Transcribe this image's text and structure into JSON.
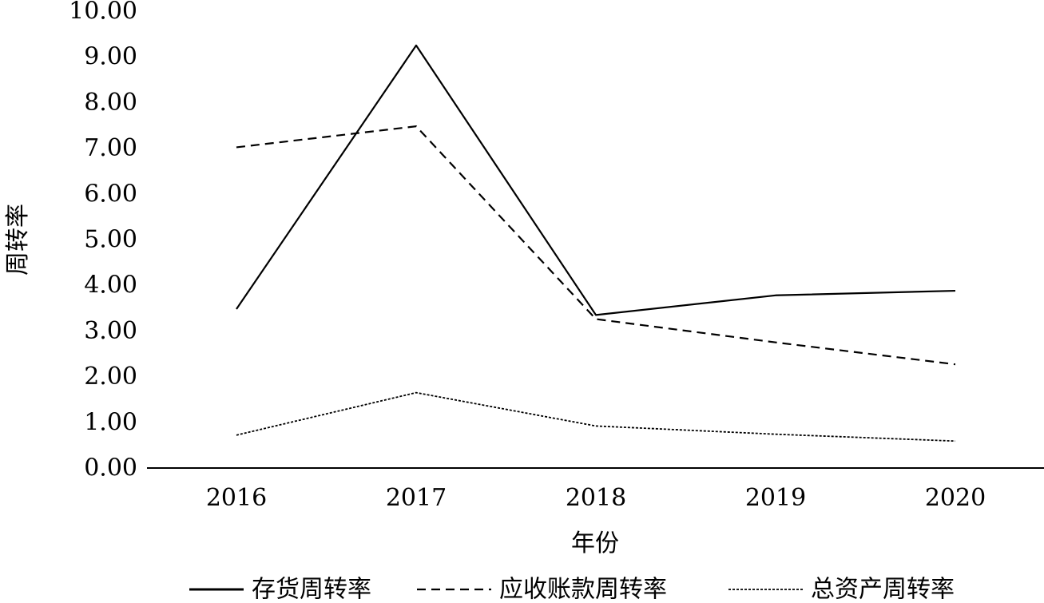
{
  "chart_data": {
    "type": "line",
    "x": [
      "2016",
      "2017",
      "2018",
      "2019",
      "2020"
    ],
    "ylim": [
      0,
      10
    ],
    "yticks": [
      "0.00",
      "1.00",
      "2.00",
      "3.00",
      "4.00",
      "5.00",
      "6.00",
      "7.00",
      "8.00",
      "9.00",
      "10.00"
    ],
    "xlabel": "年份",
    "ylabel": "周转率",
    "grid": false,
    "legend_position": "bottom",
    "series": [
      {
        "name": "存货周转率",
        "style": "solid",
        "values": [
          3.48,
          9.25,
          3.35,
          3.78,
          3.88
        ]
      },
      {
        "name": "应收账款周转率",
        "style": "dashed",
        "values": [
          7.02,
          7.48,
          3.26,
          2.75,
          2.27
        ]
      },
      {
        "name": "总资产周转率",
        "style": "dotted",
        "values": [
          0.72,
          1.65,
          0.92,
          0.74,
          0.59
        ]
      }
    ]
  }
}
